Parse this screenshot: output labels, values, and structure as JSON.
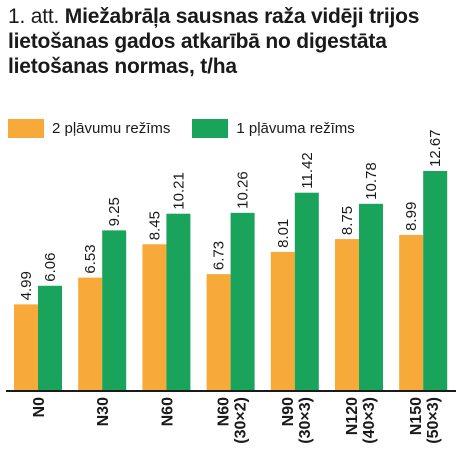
{
  "title": {
    "number": "1. att.",
    "text": "Miežabrāļa sausnas raža vidēji trijos lietošanas gados atkarībā no digestāta lietošanas normas, t/ha"
  },
  "colors": {
    "series_2": "#f7a93a",
    "series_1": "#1aa35a",
    "axis": "#1a1a1a",
    "text": "#1a1a1a"
  },
  "chart_data": {
    "type": "bar",
    "title": "1. att. Miežabrāļa sausnas raža vidēji trijos lietošanas gados atkarībā no digestāta lietošanas normas, t/ha",
    "categories": [
      [
        "N0"
      ],
      [
        "N30"
      ],
      [
        "N60"
      ],
      [
        "N60",
        "(30×2)"
      ],
      [
        "N90",
        "(30×3)"
      ],
      [
        "N120",
        "(40×3)"
      ],
      [
        "N150",
        "(50×3)"
      ]
    ],
    "series": [
      {
        "name": "2 pļāvumu režīms",
        "values": [
          4.99,
          6.53,
          8.45,
          6.73,
          8.01,
          8.75,
          8.99
        ],
        "labels": [
          "4.99",
          "6.53",
          "8.45",
          "6.73",
          "8.01",
          "8.75",
          "8.99"
        ]
      },
      {
        "name": "1 pļāvuma režīms",
        "values": [
          6.06,
          9.25,
          10.21,
          10.26,
          11.42,
          10.78,
          12.67
        ],
        "labels": [
          "6.06",
          "9.25",
          "10.21",
          "10.26",
          "11.42",
          "10.78",
          "12.67"
        ]
      }
    ],
    "xlabel": "",
    "ylabel": "",
    "ylim": [
      0,
      12.67
    ],
    "grid": false,
    "legend_position": "top-left",
    "data_labels": "rotated-vertical"
  }
}
